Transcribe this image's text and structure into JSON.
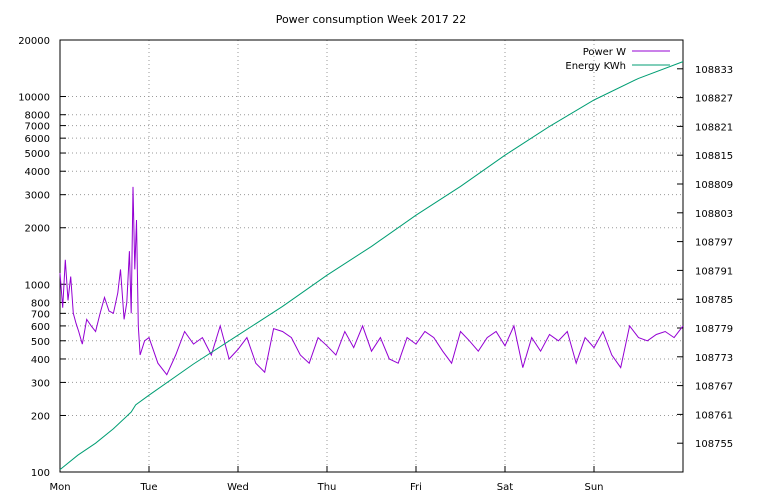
{
  "chart_data": {
    "type": "line",
    "title": "Power consumption Week 2017 22",
    "x_categories": [
      "Mon",
      "Tue",
      "Wed",
      "Thu",
      "Fri",
      "Sat",
      "Sun"
    ],
    "x_range": [
      0,
      7
    ],
    "y_left": {
      "scale": "log",
      "range": [
        100,
        20000
      ],
      "ticks": [
        100,
        200,
        300,
        400,
        500,
        600,
        700,
        800,
        1000,
        2000,
        3000,
        4000,
        5000,
        6000,
        7000,
        8000,
        10000,
        20000
      ],
      "tick_labels": [
        "100",
        "200",
        "300",
        "400",
        "500",
        "600",
        "700",
        "800",
        "1000",
        "2000",
        "3000",
        "4000",
        "5000",
        "6000",
        "7000",
        "8000",
        "10000",
        "20000"
      ]
    },
    "y_right": {
      "scale": "linear",
      "range": [
        108749,
        108839
      ],
      "ticks": [
        108755,
        108761,
        108767,
        108773,
        108779,
        108785,
        108791,
        108797,
        108803,
        108809,
        108815,
        108821,
        108827,
        108833
      ],
      "tick_labels": [
        "108755",
        "108761",
        "108767",
        "108773",
        "108779",
        "108785",
        "108791",
        "108797",
        "108803",
        "108809",
        "108815",
        "108821",
        "108827",
        "108833"
      ]
    },
    "grid": true,
    "legend_position": "top-right",
    "series": [
      {
        "name": "Power W",
        "axis": "left",
        "color": "#9400d3",
        "points": [
          [
            0.0,
            1150
          ],
          [
            0.03,
            750
          ],
          [
            0.06,
            1350
          ],
          [
            0.09,
            820
          ],
          [
            0.12,
            1100
          ],
          [
            0.15,
            700
          ],
          [
            0.18,
            620
          ],
          [
            0.21,
            560
          ],
          [
            0.25,
            480
          ],
          [
            0.3,
            650
          ],
          [
            0.35,
            600
          ],
          [
            0.4,
            560
          ],
          [
            0.45,
            700
          ],
          [
            0.5,
            850
          ],
          [
            0.55,
            720
          ],
          [
            0.6,
            700
          ],
          [
            0.65,
            900
          ],
          [
            0.68,
            1200
          ],
          [
            0.72,
            650
          ],
          [
            0.75,
            800
          ],
          [
            0.78,
            1500
          ],
          [
            0.8,
            700
          ],
          [
            0.82,
            3300
          ],
          [
            0.84,
            1200
          ],
          [
            0.86,
            2200
          ],
          [
            0.88,
            600
          ],
          [
            0.9,
            420
          ],
          [
            0.95,
            500
          ],
          [
            1.0,
            520
          ],
          [
            1.1,
            380
          ],
          [
            1.2,
            330
          ],
          [
            1.3,
            420
          ],
          [
            1.4,
            560
          ],
          [
            1.5,
            480
          ],
          [
            1.6,
            520
          ],
          [
            1.7,
            420
          ],
          [
            1.8,
            600
          ],
          [
            1.9,
            400
          ],
          [
            2.0,
            450
          ],
          [
            2.1,
            520
          ],
          [
            2.2,
            380
          ],
          [
            2.3,
            340
          ],
          [
            2.4,
            580
          ],
          [
            2.5,
            560
          ],
          [
            2.6,
            520
          ],
          [
            2.7,
            420
          ],
          [
            2.8,
            380
          ],
          [
            2.9,
            520
          ],
          [
            3.0,
            470
          ],
          [
            3.1,
            420
          ],
          [
            3.2,
            560
          ],
          [
            3.3,
            460
          ],
          [
            3.4,
            600
          ],
          [
            3.5,
            440
          ],
          [
            3.6,
            520
          ],
          [
            3.7,
            400
          ],
          [
            3.8,
            380
          ],
          [
            3.9,
            520
          ],
          [
            4.0,
            480
          ],
          [
            4.1,
            560
          ],
          [
            4.2,
            520
          ],
          [
            4.3,
            440
          ],
          [
            4.4,
            380
          ],
          [
            4.5,
            560
          ],
          [
            4.6,
            500
          ],
          [
            4.7,
            440
          ],
          [
            4.8,
            520
          ],
          [
            4.9,
            560
          ],
          [
            5.0,
            470
          ],
          [
            5.1,
            600
          ],
          [
            5.2,
            360
          ],
          [
            5.3,
            520
          ],
          [
            5.4,
            440
          ],
          [
            5.5,
            540
          ],
          [
            5.6,
            500
          ],
          [
            5.7,
            560
          ],
          [
            5.8,
            380
          ],
          [
            5.9,
            520
          ],
          [
            6.0,
            460
          ],
          [
            6.1,
            560
          ],
          [
            6.2,
            420
          ],
          [
            6.3,
            360
          ],
          [
            6.4,
            600
          ],
          [
            6.5,
            520
          ],
          [
            6.6,
            500
          ],
          [
            6.7,
            540
          ],
          [
            6.8,
            560
          ],
          [
            6.9,
            520
          ],
          [
            7.0,
            600
          ]
        ]
      },
      {
        "name": "Energy KWh",
        "axis": "right",
        "color": "#009e73",
        "points": [
          [
            0.0,
            108749.5
          ],
          [
            0.2,
            108752.5
          ],
          [
            0.4,
            108755.0
          ],
          [
            0.6,
            108758.0
          ],
          [
            0.8,
            108761.5
          ],
          [
            0.85,
            108763.0
          ],
          [
            1.0,
            108765.0
          ],
          [
            1.5,
            108771.5
          ],
          [
            2.0,
            108777.5
          ],
          [
            2.5,
            108783.5
          ],
          [
            3.0,
            108790.0
          ],
          [
            3.5,
            108796.0
          ],
          [
            4.0,
            108802.5
          ],
          [
            4.5,
            108808.5
          ],
          [
            5.0,
            108815.0
          ],
          [
            5.5,
            108821.0
          ],
          [
            6.0,
            108826.5
          ],
          [
            6.5,
            108831.0
          ],
          [
            7.0,
            108834.5
          ]
        ]
      }
    ]
  }
}
